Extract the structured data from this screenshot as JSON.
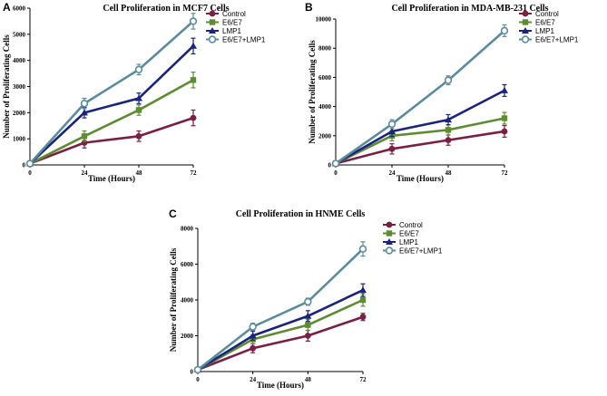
{
  "colors": {
    "Control": "#7b1f45",
    "E6/E7": "#5e8c31",
    "LMP1": "#1a237e",
    "E6/E7+LMP1": "#5b8c9e"
  },
  "chart_data": [
    {
      "panel": "A",
      "type": "line",
      "title": "Cell Proliferation in MCF7 Cells",
      "xlabel": "Time (Hours)",
      "ylabel": "Number of Proliferating Cells",
      "x": [
        0,
        24,
        48,
        72
      ],
      "xlim": [
        0,
        72
      ],
      "ylim": [
        0,
        6000
      ],
      "yticks": [
        0,
        1000,
        2000,
        3000,
        4000,
        5000,
        6000
      ],
      "legend_position": "top-right",
      "series": [
        {
          "name": "Control",
          "marker": "circle",
          "values": [
            50,
            850,
            1100,
            1800
          ],
          "errors": [
            0,
            200,
            200,
            300
          ]
        },
        {
          "name": "E6/E7",
          "marker": "square",
          "values": [
            50,
            1100,
            2100,
            3250
          ],
          "errors": [
            0,
            200,
            200,
            300
          ]
        },
        {
          "name": "LMP1",
          "marker": "triangle",
          "values": [
            50,
            2000,
            2550,
            4550
          ],
          "errors": [
            0,
            200,
            200,
            300
          ]
        },
        {
          "name": "E6/E7+LMP1",
          "marker": "open-circle",
          "values": [
            50,
            2350,
            3650,
            5500
          ],
          "errors": [
            0,
            200,
            200,
            300
          ]
        }
      ]
    },
    {
      "panel": "B",
      "type": "line",
      "title": "Cell Proliferation in MDA-MB-231 Cells",
      "xlabel": "Time (Hours)",
      "ylabel": "Number of Proliferating Cells",
      "x": [
        0,
        24,
        48,
        72
      ],
      "xlim": [
        0,
        72
      ],
      "ylim": [
        0,
        10000
      ],
      "yticks": [
        0,
        2000,
        4000,
        6000,
        8000,
        10000
      ],
      "legend_position": "top-right",
      "series": [
        {
          "name": "Control",
          "marker": "circle",
          "values": [
            100,
            1100,
            1700,
            2300
          ],
          "errors": [
            0,
            350,
            350,
            400
          ]
        },
        {
          "name": "E6/E7",
          "marker": "square",
          "values": [
            100,
            2000,
            2400,
            3200
          ],
          "errors": [
            0,
            350,
            350,
            400
          ]
        },
        {
          "name": "LMP1",
          "marker": "triangle",
          "values": [
            100,
            2300,
            3100,
            5100
          ],
          "errors": [
            0,
            350,
            350,
            400
          ]
        },
        {
          "name": "E6/E7+LMP1",
          "marker": "open-circle",
          "values": [
            100,
            2800,
            5800,
            9200
          ],
          "errors": [
            0,
            300,
            300,
            400
          ]
        }
      ]
    },
    {
      "panel": "C",
      "type": "line",
      "title": "Cell Proliferation in HNME Cells",
      "xlabel": "Time (Hours)",
      "ylabel": "Number of Proliferating Cells",
      "x": [
        0,
        24,
        48,
        72
      ],
      "xlim": [
        0,
        72
      ],
      "ylim": [
        0,
        8000
      ],
      "yticks": [
        0,
        2000,
        4000,
        6000,
        8000
      ],
      "legend_position": "top-right",
      "series": [
        {
          "name": "Control",
          "marker": "circle",
          "values": [
            100,
            1300,
            2000,
            3050
          ],
          "errors": [
            0,
            250,
            300,
            200
          ]
        },
        {
          "name": "E6/E7",
          "marker": "square",
          "values": [
            100,
            1800,
            2600,
            4000
          ],
          "errors": [
            0,
            250,
            300,
            350
          ]
        },
        {
          "name": "LMP1",
          "marker": "triangle",
          "values": [
            100,
            2000,
            3100,
            4550
          ],
          "errors": [
            0,
            250,
            300,
            350
          ]
        },
        {
          "name": "E6/E7+LMP1",
          "marker": "open-circle",
          "values": [
            100,
            2500,
            3900,
            6850
          ],
          "errors": [
            0,
            200,
            200,
            400
          ]
        }
      ]
    }
  ]
}
